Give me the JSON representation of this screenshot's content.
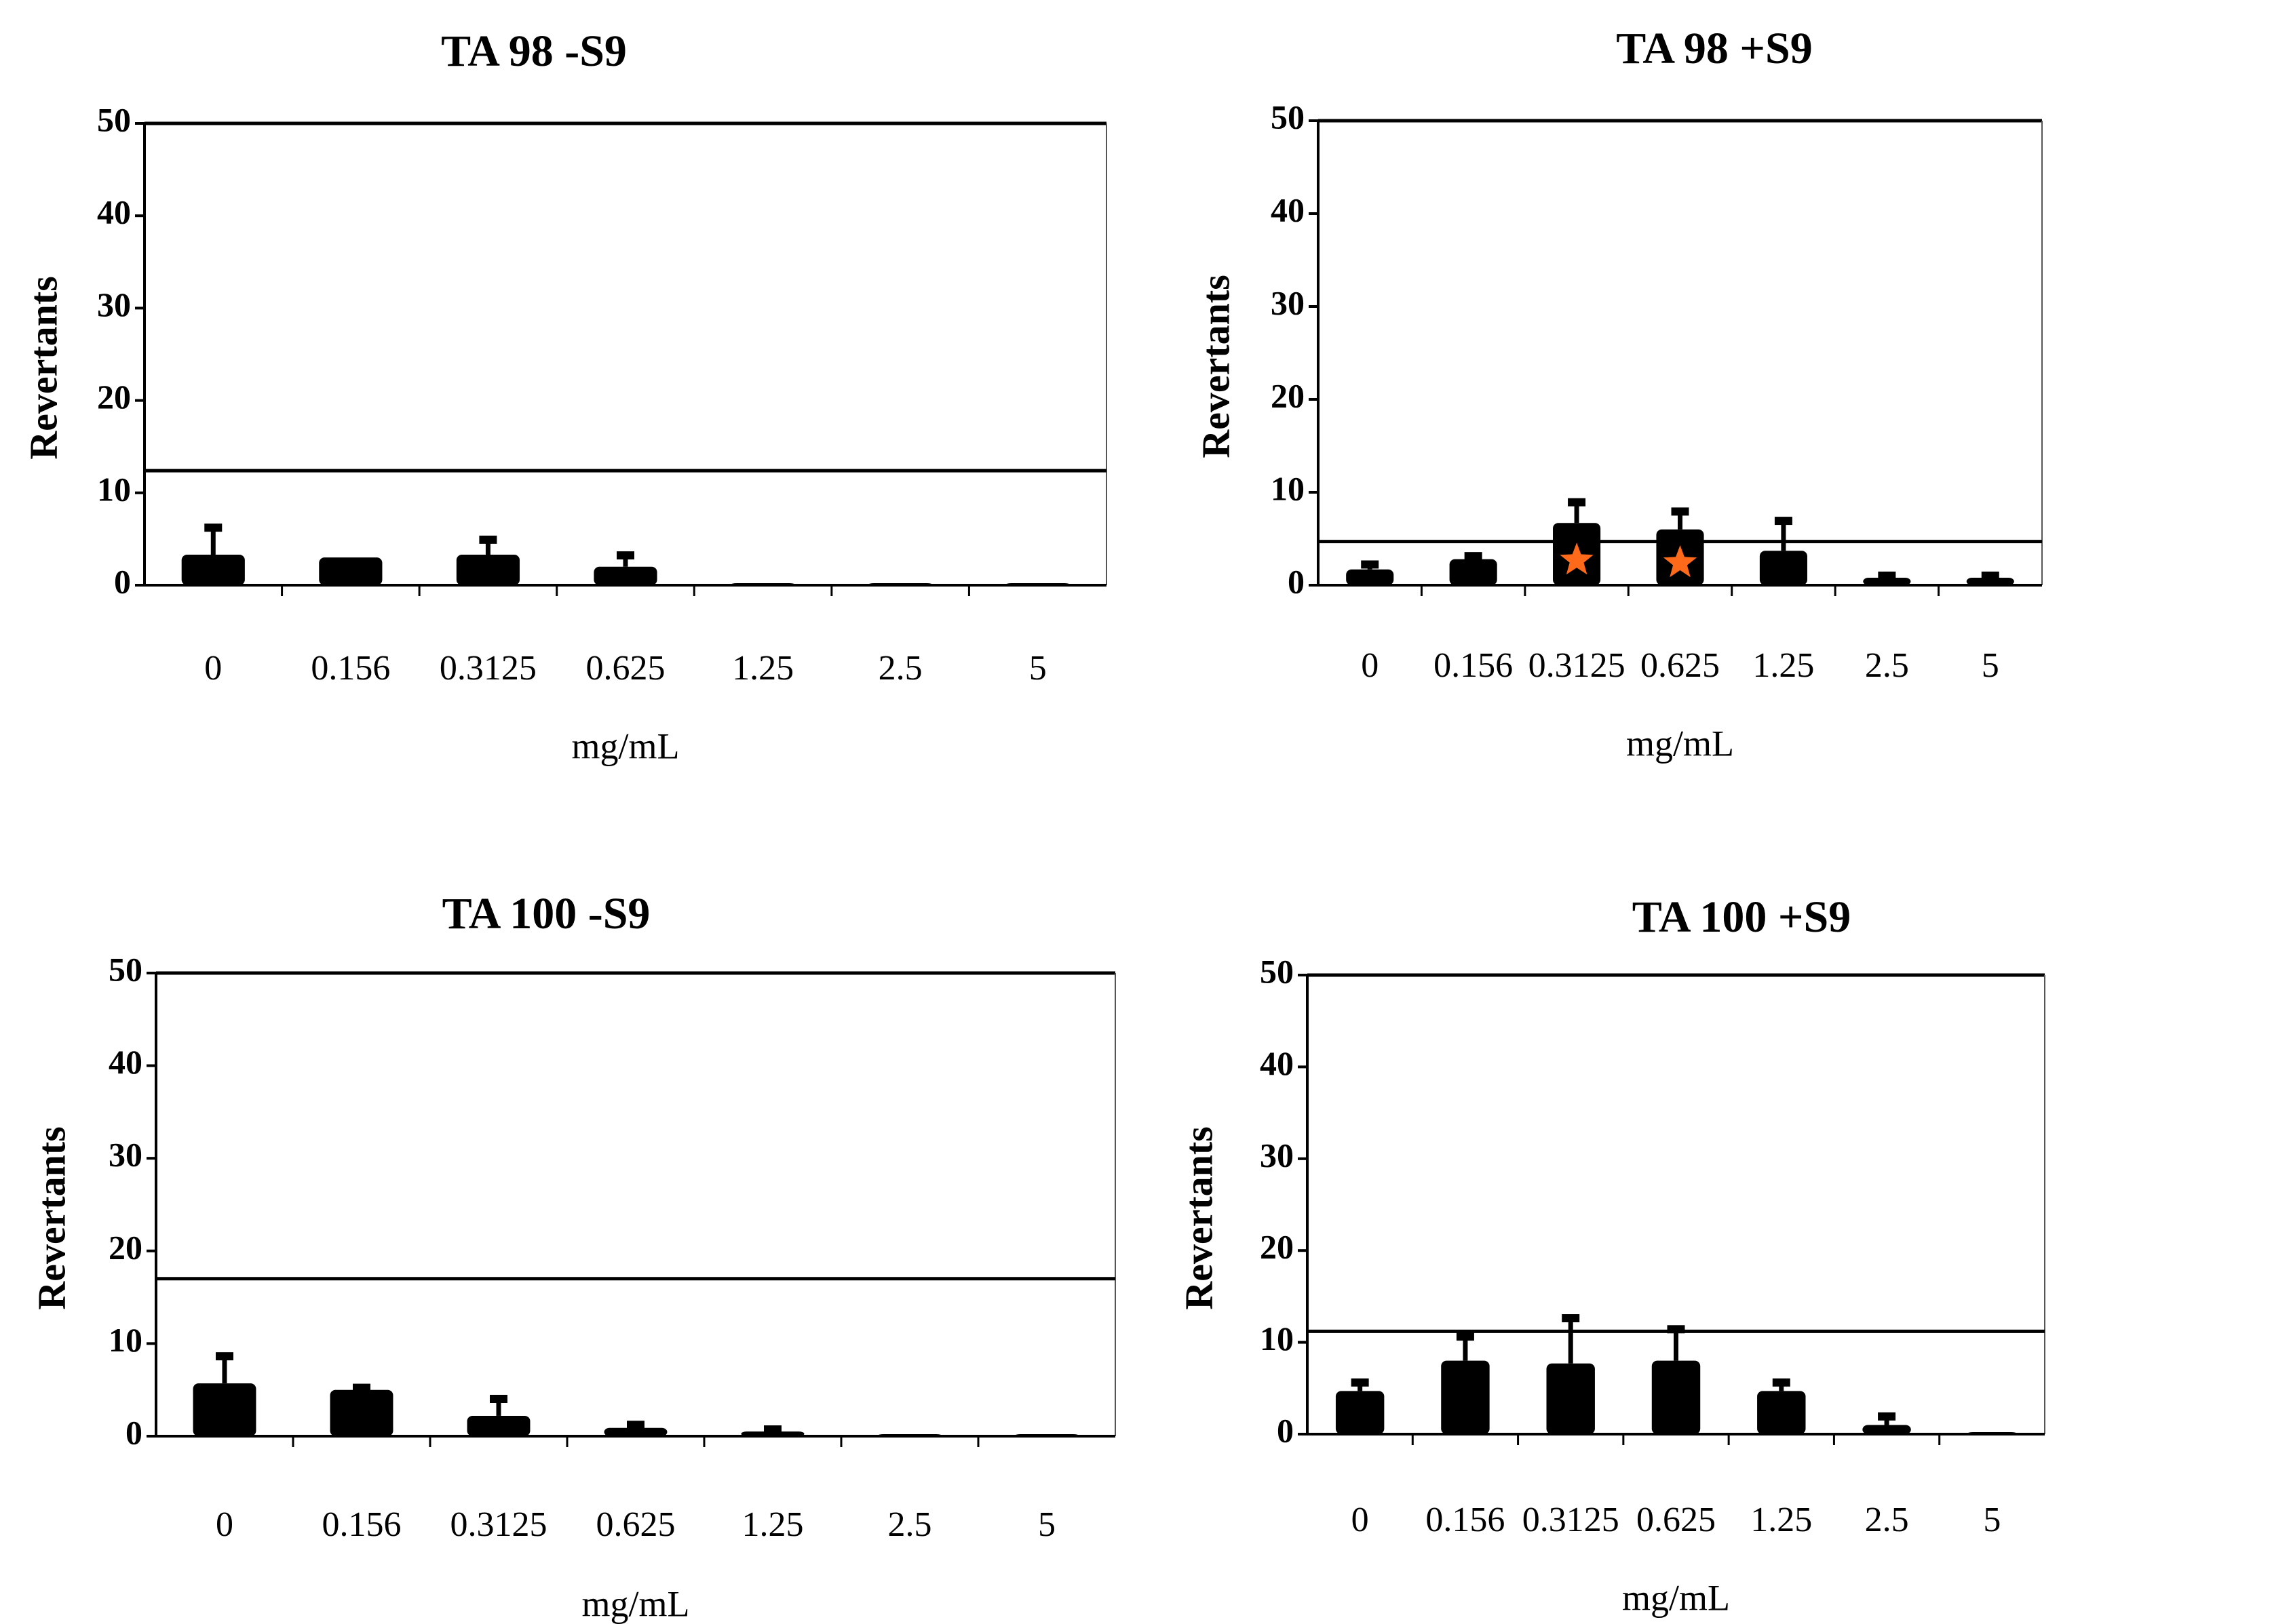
{
  "chart_data": [
    {
      "type": "bar",
      "title": "TA 98 -S9",
      "xlabel": "mg/mL",
      "ylabel": "Revertants",
      "ylim": [
        0,
        50
      ],
      "yticks": [
        0,
        10,
        20,
        30,
        40,
        50
      ],
      "categories": [
        "0",
        "0.156",
        "0.3125",
        "0.625",
        "1.25",
        "2.5",
        "5"
      ],
      "values": [
        3.3,
        3.0,
        3.3,
        2.0,
        0.1,
        0.1,
        0.1
      ],
      "errors": [
        3.0,
        0,
        1.7,
        1.3,
        0,
        0,
        0
      ],
      "threshold": 12.4,
      "significant": [
        false,
        false,
        false,
        false,
        false,
        false,
        false
      ],
      "bar_color": "#000000",
      "marker_color": "#ff6a1a"
    },
    {
      "type": "bar",
      "title": "TA 98 +S9",
      "xlabel": "mg/mL",
      "ylabel": "Revertants",
      "ylim": [
        0,
        50
      ],
      "yticks": [
        0,
        10,
        20,
        30,
        40,
        50
      ],
      "categories": [
        "0",
        "0.156",
        "0.3125",
        "0.625",
        "1.25",
        "2.5",
        "5"
      ],
      "values": [
        1.7,
        2.8,
        6.7,
        6.0,
        3.7,
        0.8,
        0.8
      ],
      "errors": [
        0.6,
        0.4,
        2.3,
        2.0,
        3.3,
        0.3,
        0.3
      ],
      "threshold": 4.7,
      "significant": [
        false,
        false,
        true,
        true,
        false,
        false,
        false
      ],
      "bar_color": "#000000",
      "marker_color": "#ff6a1a"
    },
    {
      "type": "bar",
      "title": "TA 100 -S9",
      "xlabel": "mg/mL",
      "ylabel": "Revertants",
      "ylim": [
        0,
        50
      ],
      "yticks": [
        0,
        10,
        20,
        30,
        40,
        50
      ],
      "categories": [
        "0",
        "0.156",
        "0.3125",
        "0.625",
        "1.25",
        "2.5",
        "5"
      ],
      "values": [
        5.7,
        5.0,
        2.2,
        0.9,
        0.5,
        0.1,
        0.1
      ],
      "errors": [
        3.0,
        0.3,
        1.9,
        0.4,
        0.3,
        0,
        0
      ],
      "threshold": 17.0,
      "significant": [
        false,
        false,
        false,
        false,
        false,
        false,
        false
      ],
      "bar_color": "#000000",
      "marker_color": "#ff6a1a"
    },
    {
      "type": "bar",
      "title": "TA 100 +S9",
      "xlabel": "mg/mL",
      "ylabel": "Revertants",
      "ylim": [
        0,
        50
      ],
      "yticks": [
        0,
        10,
        20,
        30,
        40,
        50
      ],
      "categories": [
        "0",
        "0.156",
        "0.3125",
        "0.625",
        "1.25",
        "2.5",
        "5"
      ],
      "values": [
        4.7,
        8.0,
        7.7,
        8.0,
        4.7,
        1.0,
        0.1
      ],
      "errors": [
        1.0,
        2.7,
        5.0,
        3.5,
        1.0,
        1.0,
        0
      ],
      "threshold": 11.2,
      "significant": [
        false,
        false,
        false,
        false,
        false,
        false,
        false
      ],
      "bar_color": "#000000",
      "marker_color": "#ff6a1a"
    }
  ]
}
